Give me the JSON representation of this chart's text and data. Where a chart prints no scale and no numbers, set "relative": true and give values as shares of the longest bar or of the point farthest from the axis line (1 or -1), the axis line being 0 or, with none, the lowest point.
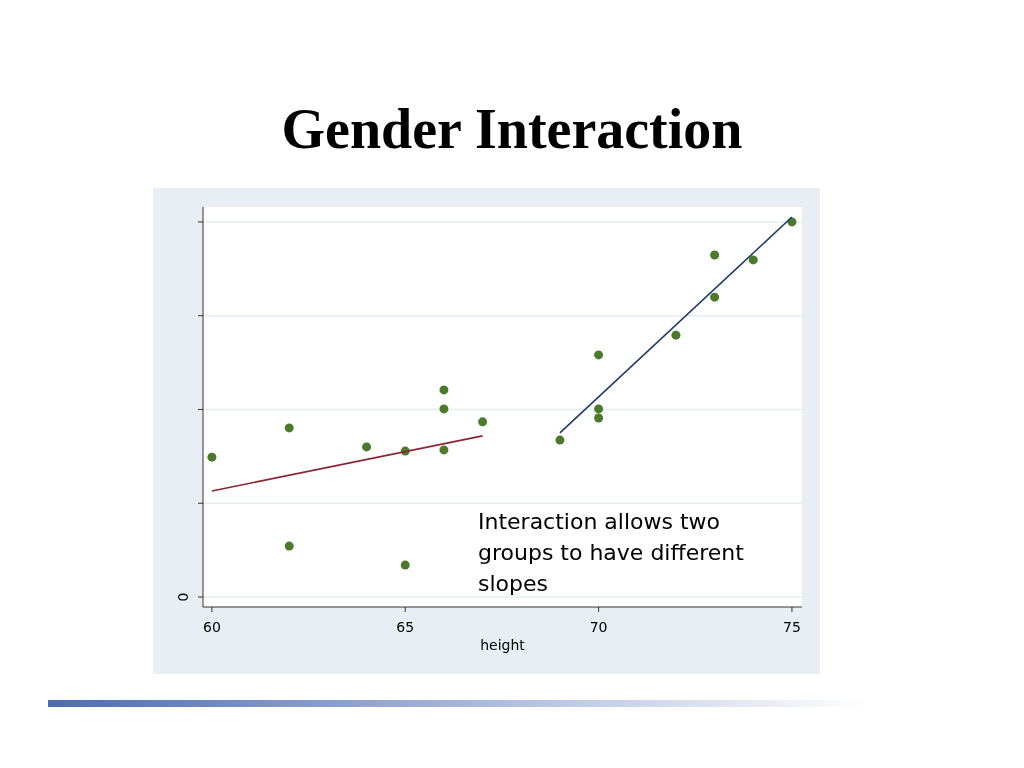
{
  "chart_data": {
    "type": "scatter",
    "title": "Gender Interaction",
    "xlabel": "height",
    "relative": true,
    "xlim": [
      59.77,
      75.26
    ],
    "xticks": [
      60,
      65,
      70,
      75
    ],
    "grid": "y",
    "annotations": [
      "Interaction allows two groups to have different slopes",
      "0"
    ],
    "series": [
      {
        "marker": "circle",
        "color": "#4b7a2b",
        "x": [
          60,
          62,
          62,
          64,
          65,
          65,
          66,
          66,
          66,
          67,
          69,
          70,
          70,
          70,
          72,
          73,
          73,
          74,
          75
        ],
        "values": [
          0.368,
          0.445,
          0.134,
          0.395,
          0.384,
          0.084,
          0.545,
          0.495,
          0.387,
          0.461,
          0.413,
          0.637,
          0.495,
          0.471,
          0.689,
          0.9,
          0.789,
          0.887,
          0.987
        ]
      },
      {
        "type": "line",
        "color": "#8b2332",
        "x": [
          60,
          67
        ],
        "values": [
          0.279,
          0.424
        ]
      },
      {
        "type": "line",
        "color": "#1f3d6b",
        "x": [
          69,
          75
        ],
        "values": [
          0.432,
          1
        ]
      }
    ]
  }
}
